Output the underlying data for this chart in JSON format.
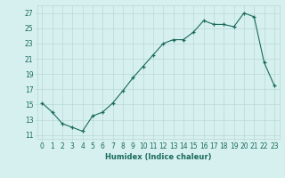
{
  "x": [
    0,
    1,
    2,
    3,
    4,
    5,
    6,
    7,
    8,
    9,
    10,
    11,
    12,
    13,
    14,
    15,
    16,
    17,
    18,
    19,
    20,
    21,
    22,
    23
  ],
  "y": [
    15.2,
    14.0,
    12.5,
    12.0,
    11.5,
    13.5,
    14.0,
    15.2,
    16.8,
    18.5,
    20.0,
    21.5,
    23.0,
    23.5,
    23.5,
    24.5,
    26.0,
    25.5,
    25.5,
    25.2,
    27.0,
    26.5,
    20.5,
    17.5
  ],
  "xlabel": "Humidex (Indice chaleur)",
  "ylim": [
    10.5,
    28.0
  ],
  "yticks": [
    11,
    13,
    15,
    17,
    19,
    21,
    23,
    25,
    27
  ],
  "xticks": [
    0,
    1,
    2,
    3,
    4,
    5,
    6,
    7,
    8,
    9,
    10,
    11,
    12,
    13,
    14,
    15,
    16,
    17,
    18,
    19,
    20,
    21,
    22,
    23
  ],
  "xtick_labels": [
    "0",
    "1",
    "2",
    "3",
    "4",
    "5",
    "6",
    "7",
    "8",
    "9",
    "10",
    "11",
    "12",
    "13",
    "14",
    "15",
    "16",
    "17",
    "18",
    "19",
    "20",
    "21",
    "22",
    "23"
  ],
  "line_color": "#1a6b5a",
  "marker_color": "#1a6b5a",
  "bg_color": "#d6f0ef",
  "grid_color": "#b8d8d4",
  "xlabel_fontsize": 6.0,
  "tick_fontsize": 5.5
}
